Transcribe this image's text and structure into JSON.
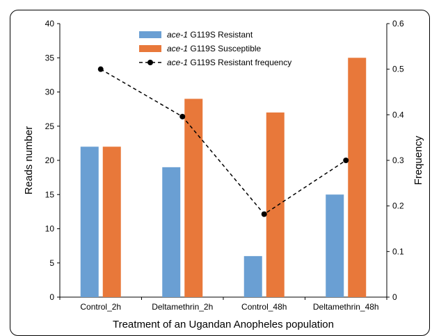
{
  "chart_data": {
    "type": "bar",
    "xlabel": "Treatment of an Ugandan Anopheles population",
    "ylabel": "Reads number",
    "y2label": "Frequency",
    "ylim": [
      0,
      40
    ],
    "y2lim": [
      0,
      0.6
    ],
    "yticks": [
      "0",
      "5",
      "10",
      "15",
      "20",
      "25",
      "30",
      "35",
      "40"
    ],
    "y2ticks": [
      "0",
      "0.1",
      "0.2",
      "0.3",
      "0.4",
      "0.5",
      "0.6"
    ],
    "categories": [
      "Control_2h",
      "Deltamethrin_2h",
      "Control_48h",
      "Deltamethrin_48h"
    ],
    "series": [
      {
        "name_italic": "ace-1",
        "name_rest": " G119S Resistant",
        "type": "bar",
        "axis": "left",
        "color": "#6a9fd3",
        "values": [
          22,
          19,
          6,
          15
        ]
      },
      {
        "name_italic": "ace-1",
        "name_rest": " G119S Susceptible",
        "type": "bar",
        "axis": "left",
        "color": "#e8783a",
        "values": [
          22,
          29,
          27,
          35
        ]
      },
      {
        "name_italic": "ace-1",
        "name_rest": " G119S Resistant frequency",
        "type": "line",
        "axis": "right",
        "color": "#000000",
        "style": "dashed",
        "marker": "circle",
        "values": [
          0.5,
          0.396,
          0.182,
          0.3
        ]
      }
    ],
    "legend_position": "top-center",
    "grid": false
  }
}
